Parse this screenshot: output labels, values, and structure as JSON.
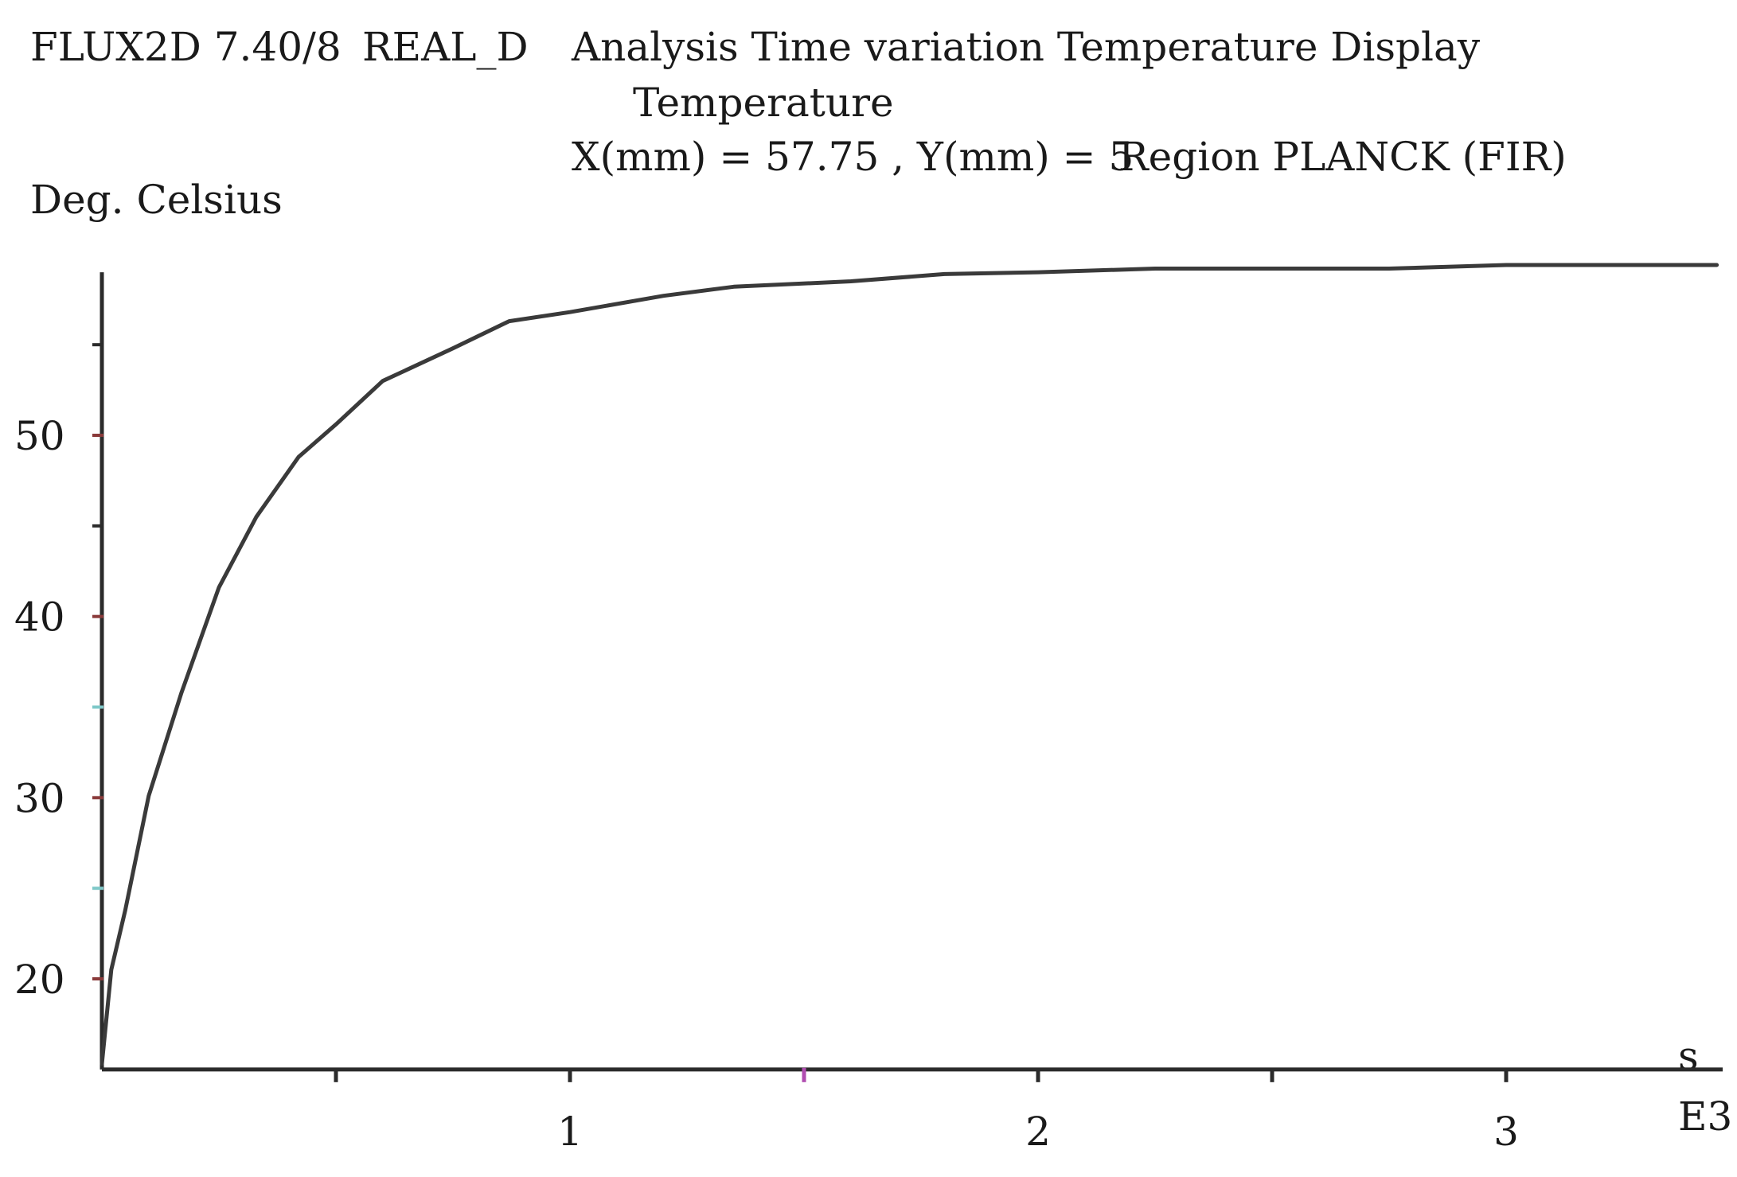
{
  "header": {
    "line1_software": "FLUX2D 7.40/8",
    "line1_case": "REAL_D",
    "line1_analysis": "Analysis Time variation Temperature Display",
    "line2_quantity": "Temperature",
    "line3_location": "X(mm) = 57.75 , Y(mm) = 5",
    "line3_region": "Region PLANCK (FIR)"
  },
  "chart_data": {
    "type": "line",
    "title": "Temperature",
    "ylabel": "Deg. Celsius",
    "xlabel": "s",
    "x_multiplier_label": "E3",
    "xlim": [
      0,
      3.25
    ],
    "ylim": [
      15,
      59
    ],
    "x_ticks": [
      0.5,
      1,
      1.5,
      2,
      2.5,
      3
    ],
    "x_tick_labels": [
      {
        "value": 1,
        "label": "1"
      },
      {
        "value": 2,
        "label": "2"
      },
      {
        "value": 3,
        "label": "3"
      }
    ],
    "y_ticks": [
      20,
      25,
      30,
      35,
      40,
      45,
      50,
      55
    ],
    "y_tick_labels": [
      {
        "value": 20,
        "label": "20"
      },
      {
        "value": 30,
        "label": "30"
      },
      {
        "value": 40,
        "label": "40"
      },
      {
        "value": 50,
        "label": "50"
      }
    ],
    "series": [
      {
        "x": [
          0,
          0.02,
          0.05,
          0.1,
          0.17,
          0.25,
          0.33,
          0.42,
          0.5,
          0.6,
          0.75,
          0.87,
          1.0,
          1.2,
          1.35,
          1.6,
          1.8,
          2.0,
          2.25,
          2.5,
          2.75,
          3.0,
          3.25,
          3.45
        ],
        "y": [
          15.3,
          20.5,
          23.8,
          30.1,
          35.8,
          41.6,
          45.5,
          48.8,
          50.6,
          53.0,
          54.8,
          56.3,
          56.8,
          57.7,
          58.2,
          58.5,
          58.9,
          59.0,
          59.2,
          59.2,
          59.2,
          59.4,
          59.4,
          59.4
        ],
        "color": "#3a3a3a"
      }
    ],
    "axis_color": "#2b2b2b",
    "tick_marker_colors": {
      "x_1.5": "#b04cb0",
      "y_20": "#8a3a3a",
      "y_25": "#7ec8c8",
      "y_30": "#8a3a3a",
      "y_35": "#7ec8c8",
      "y_40": "#8a3a3a",
      "y_50": "#8a3a3a"
    },
    "grid": false,
    "legend": "none"
  }
}
